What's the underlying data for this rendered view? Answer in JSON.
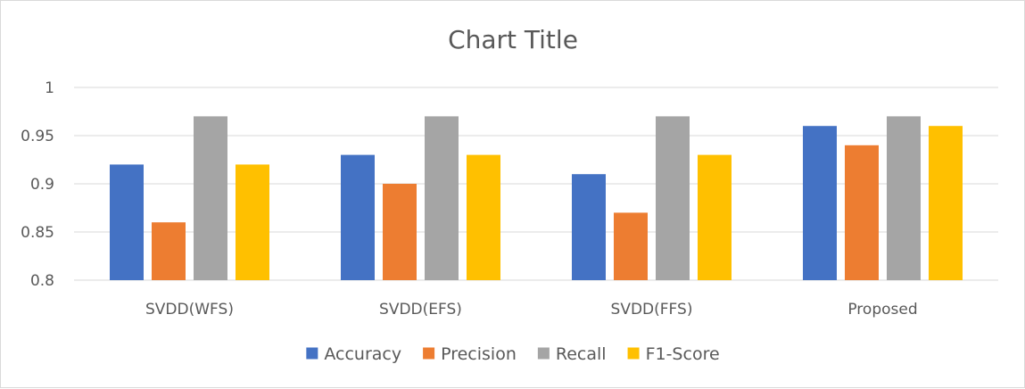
{
  "chart_data": {
    "type": "bar",
    "title": "Chart Title",
    "xlabel": "",
    "ylabel": "",
    "categories": [
      "SVDD(WFS)",
      "SVDD(EFS)",
      "SVDD(FFS)",
      "Proposed"
    ],
    "series": [
      {
        "name": "Accuracy",
        "color": "#4472c4",
        "values": [
          0.92,
          0.93,
          0.91,
          0.96
        ]
      },
      {
        "name": "Precision",
        "color": "#ed7d31",
        "values": [
          0.86,
          0.9,
          0.87,
          0.94
        ]
      },
      {
        "name": "Recall",
        "color": "#a5a5a5",
        "values": [
          0.97,
          0.97,
          0.97,
          0.97
        ]
      },
      {
        "name": "F1-Score",
        "color": "#ffc000",
        "values": [
          0.92,
          0.93,
          0.93,
          0.96
        ]
      }
    ],
    "ylim": [
      0.8,
      1
    ],
    "yticks": [
      "0.8",
      "0.85",
      "0.9",
      "0.95",
      "1"
    ],
    "ytick_values": [
      0.8,
      0.85,
      0.9,
      0.95,
      1.0
    ],
    "grid": true,
    "legend_position": "bottom"
  }
}
